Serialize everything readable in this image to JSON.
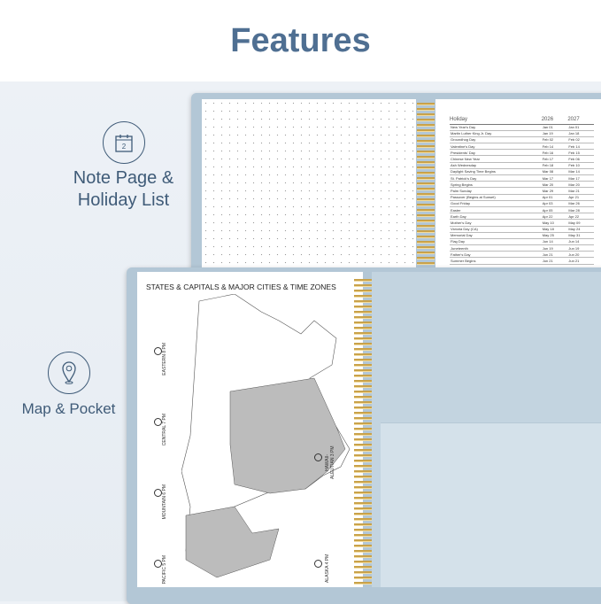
{
  "banner": {
    "title": "Features"
  },
  "features": [
    {
      "label_1": "Note Page &",
      "label_2": "Holiday List",
      "icon": "calendar-icon",
      "icon_text": "2"
    },
    {
      "label": "Map & Pocket",
      "icon": "location-pin-icon"
    }
  ],
  "holiday_list": {
    "headers": [
      "Holiday",
      "2026",
      "2027"
    ],
    "rows": [
      [
        "New Year's Day",
        "Jan 01",
        "Jan 01"
      ],
      [
        "Martin Luther King Jr. Day",
        "Jan 19",
        "Jan 18"
      ],
      [
        "Groundhog Day",
        "Feb 02",
        "Feb 02"
      ],
      [
        "Valentine's Day",
        "Feb 14",
        "Feb 14"
      ],
      [
        "Presidents' Day",
        "Feb 16",
        "Feb 15"
      ],
      [
        "Chinese New Year",
        "Feb 17",
        "Feb 06"
      ],
      [
        "Ash Wednesday",
        "Feb 18",
        "Feb 10"
      ],
      [
        "Daylight Saving Time Begins",
        "Mar 08",
        "Mar 14"
      ],
      [
        "St. Patrick's Day",
        "Mar 17",
        "Mar 17"
      ],
      [
        "Spring Begins",
        "Mar 20",
        "Mar 20"
      ],
      [
        "Palm Sunday",
        "Mar 29",
        "Mar 21"
      ],
      [
        "Passover (Begins at Sunset)",
        "Apr 01",
        "Apr 21"
      ],
      [
        "Good Friday",
        "Apr 03",
        "Mar 26"
      ],
      [
        "Easter",
        "Apr 05",
        "Mar 28"
      ],
      [
        "Earth Day",
        "Apr 22",
        "Apr 22"
      ],
      [
        "Mother's Day",
        "May 10",
        "May 09"
      ],
      [
        "Victoria Day (CA)",
        "May 18",
        "May 24"
      ],
      [
        "Memorial Day",
        "May 25",
        "May 31"
      ],
      [
        "Flag Day",
        "Jun 14",
        "Jun 14"
      ],
      [
        "Juneteenth",
        "Jun 19",
        "Jun 19"
      ],
      [
        "Father's Day",
        "Jun 21",
        "Jun 20"
      ],
      [
        "Summer Begins",
        "Jun 21",
        "Jun 21"
      ]
    ]
  },
  "map": {
    "title": "STATES & CAPITALS & MAJOR CITIES & TIME ZONES",
    "time_zones": [
      "EASTERN 8 PM",
      "CENTRAL 7 PM",
      "MOUNTAIN 6 PM",
      "PACIFIC 5 PM"
    ],
    "time_zones_right": [
      "HAWAII-ALEUTIAN 3 PM",
      "ALASKA 4 PM"
    ]
  },
  "colors": {
    "title": "#4f6f92",
    "cover": "#b3c7d6",
    "coil": "#c9a24a"
  }
}
